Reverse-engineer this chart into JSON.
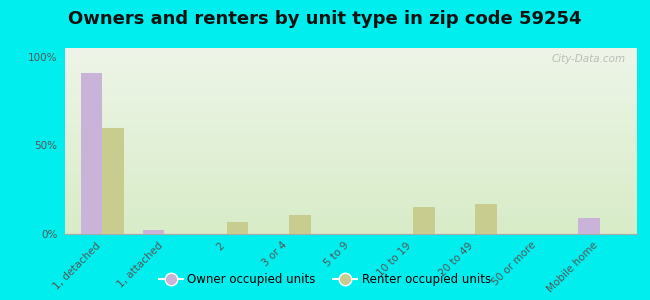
{
  "title": "Owners and renters by unit type in zip code 59254",
  "categories": [
    "1, detached",
    "1, attached",
    "2",
    "3 or 4",
    "5 to 9",
    "10 to 19",
    "20 to 49",
    "50 or more",
    "Mobile home"
  ],
  "owner_values": [
    91,
    2,
    0,
    0,
    0,
    0,
    0,
    0,
    9
  ],
  "renter_values": [
    60,
    0,
    7,
    11,
    0,
    15,
    17,
    0,
    0
  ],
  "owner_color": "#c9b3d9",
  "renter_color": "#c8cc8e",
  "background_color": "#00eeee",
  "plot_bg_color_top": "#eef5e8",
  "plot_bg_color_bottom": "#d8ecc8",
  "ylabel_ticks": [
    "0%",
    "50%",
    "100%"
  ],
  "ytick_vals": [
    0,
    50,
    100
  ],
  "ylim": [
    0,
    105
  ],
  "bar_width": 0.35,
  "legend_owner": "Owner occupied units",
  "legend_renter": "Renter occupied units",
  "watermark": "City-Data.com",
  "title_fontsize": 13,
  "tick_fontsize": 7.5
}
